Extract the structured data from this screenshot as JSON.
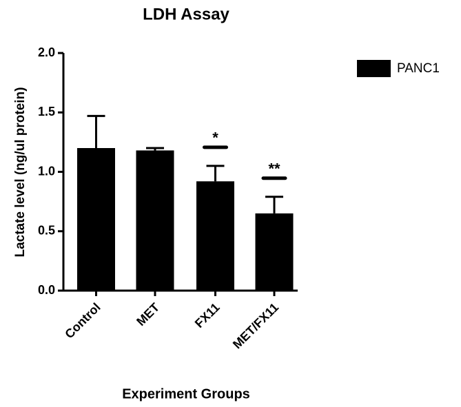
{
  "chart_data": {
    "type": "bar",
    "title": "LDH Assay",
    "x_label": "Experiment Groups",
    "y_label": "Lactate level (ng/ul protein)",
    "categories": [
      "Control",
      "MET",
      "FX11",
      "MET/FX11"
    ],
    "series": [
      {
        "name": "PANC1",
        "color": "#000000",
        "values": [
          1.2,
          1.18,
          0.92,
          0.65
        ],
        "errors": [
          0.27,
          0.02,
          0.13,
          0.14
        ]
      }
    ],
    "significance": [
      null,
      null,
      "*",
      "**"
    ],
    "ylim": [
      0,
      2
    ],
    "yticks": [
      {
        "value": 0,
        "label": "0.0"
      },
      0.5,
      {
        "value": 1,
        "label": "1.0"
      },
      1.5,
      {
        "value": 2,
        "label": "2.0"
      }
    ],
    "legend": "top-right"
  }
}
